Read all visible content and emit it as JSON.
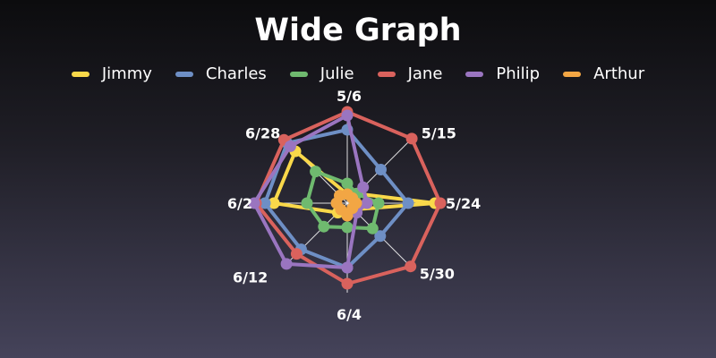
{
  "chart_data": {
    "type": "radar",
    "title": "Wide Graph",
    "categories": [
      "5/6",
      "5/15",
      "5/24",
      "5/30",
      "6/4",
      "6/12",
      "6/21",
      "6/28"
    ],
    "category_labels_shown": [
      "5/6",
      "5/15",
      "5/24",
      "5/30",
      "6/4",
      "6/12",
      "6/2",
      "6/28"
    ],
    "rmax": 100,
    "grid": true,
    "legend_position": "top",
    "series": [
      {
        "name": "Jimmy",
        "color": "#f9d84a",
        "values": [
          10,
          15,
          98,
          10,
          12,
          15,
          82,
          82
        ]
      },
      {
        "name": "Charles",
        "color": "#6e8fc5",
        "values": [
          82,
          53,
          68,
          52,
          72,
          73,
          92,
          95
        ]
      },
      {
        "name": "Julie",
        "color": "#6fba6f",
        "values": [
          22,
          15,
          35,
          40,
          27,
          37,
          45,
          50
        ]
      },
      {
        "name": "Jane",
        "color": "#d9625d",
        "values": [
          102,
          102,
          104,
          100,
          90,
          80,
          102,
          100
        ]
      },
      {
        "name": "Philip",
        "color": "#9a75c0",
        "values": [
          98,
          25,
          22,
          15,
          72,
          96,
          104,
          90
        ]
      },
      {
        "name": "Arthur",
        "color": "#f2a644",
        "values": [
          10,
          8,
          10,
          8,
          14,
          10,
          12,
          12
        ]
      }
    ]
  }
}
